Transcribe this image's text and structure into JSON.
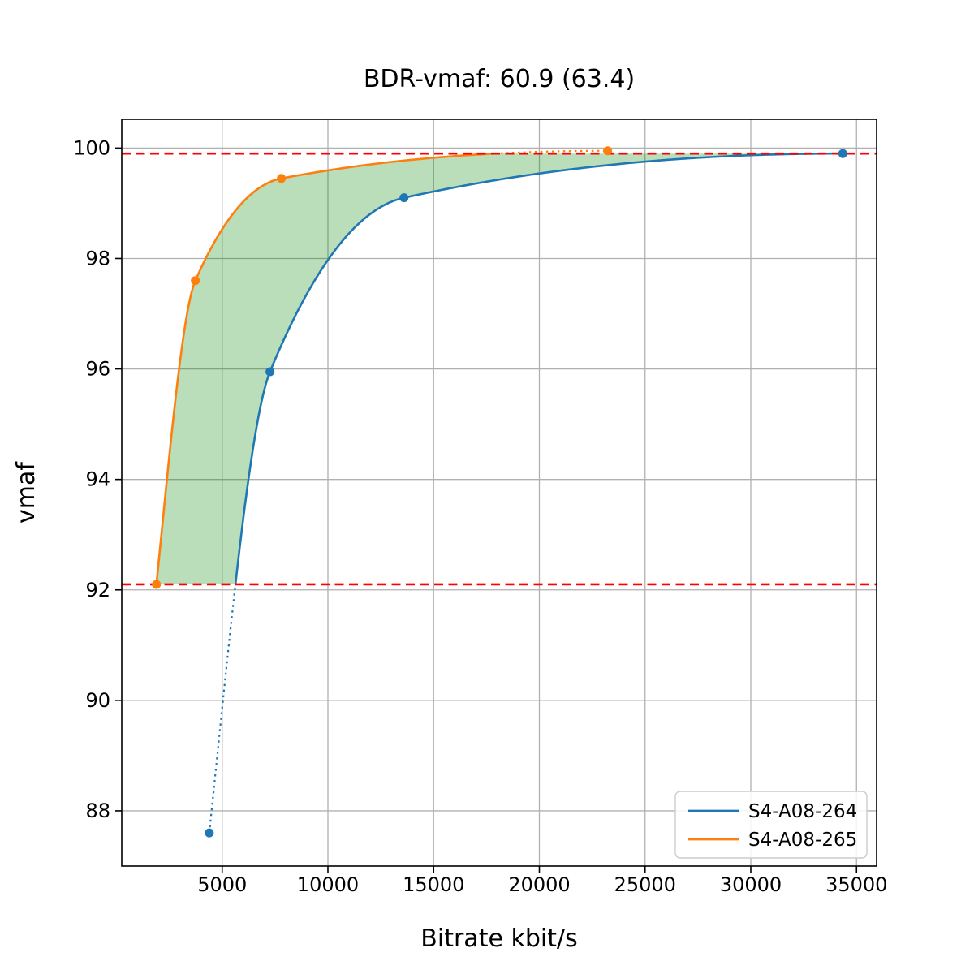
{
  "chart_data": {
    "type": "line",
    "title": "BDR-vmaf: 60.9 (63.4)",
    "xlabel": "Bitrate kbit/s",
    "ylabel": "vmaf",
    "xlim": [
      250,
      35950
    ],
    "ylim": [
      87.0,
      100.52
    ],
    "xticks": [
      5000,
      10000,
      15000,
      20000,
      25000,
      30000,
      35000
    ],
    "yticks": [
      88,
      90,
      92,
      94,
      96,
      98,
      100
    ],
    "grid": true,
    "grid_color": "#b0b0b0",
    "legend_position": "lower right",
    "series": [
      {
        "name": "S4-A08-264",
        "color": "#1f77b4",
        "points": [
          [
            4390,
            87.6
          ],
          [
            7260,
            95.95
          ],
          [
            13600,
            99.1
          ],
          [
            34350,
            99.9
          ]
        ]
      },
      {
        "name": "S4-A08-265",
        "color": "#ff7f0e",
        "points": [
          [
            1890,
            92.1
          ],
          [
            3730,
            97.6
          ],
          [
            7800,
            99.45
          ],
          [
            23230,
            99.95
          ]
        ]
      }
    ],
    "integration_bounds": {
      "lower": 92.1,
      "upper": 99.9,
      "line_color": "#ff0000",
      "line_style": "dashed"
    },
    "shaded_region_color": "rgba(0, 128, 0, 0.27)",
    "interpolation": "pchip"
  }
}
